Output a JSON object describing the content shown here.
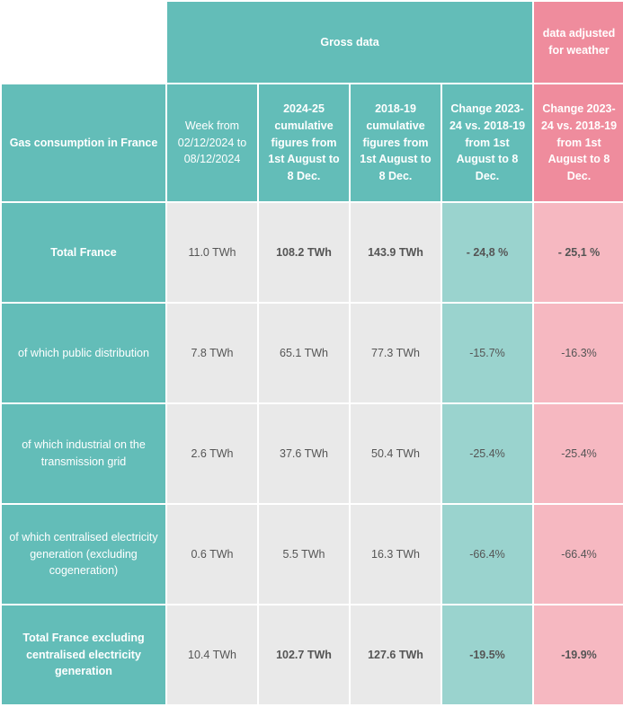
{
  "table": {
    "groupHeaders": {
      "gross": "Gross data",
      "adjusted": "data adjusted for weather"
    },
    "subHeaders": {
      "rowLabel": "Gas consumption in France",
      "week": "Week from 02/12/2024 to 08/12/2024",
      "cum2425": "2024-25 cumulative figures from 1st August to 8 Dec.",
      "cum1819": "2018-19 cumulative figures from 1st August to 8 Dec.",
      "changeGross": "Change 2023-24 vs. 2018-19 from 1st August to 8 Dec.",
      "changeAdj": "Change 2023-24 vs. 2018-19 from 1st August to 8 Dec."
    },
    "rows": [
      {
        "label": "Total France",
        "labelBold": true,
        "week": "11.0 TWh",
        "c2425": "108.2 TWh",
        "c1819": "143.9 TWh",
        "boldMid": true,
        "gross": "- 24,8 %",
        "adj": "- 25,1 %",
        "grossBold": true,
        "adjBold": true
      },
      {
        "label": "of which public distribution",
        "labelBold": false,
        "week": "7.8 TWh",
        "c2425": "65.1 TWh",
        "c1819": "77.3 TWh",
        "boldMid": false,
        "gross": "-15.7%",
        "adj": "-16.3%",
        "grossBold": false,
        "adjBold": false
      },
      {
        "label": "of which industrial on the transmission grid",
        "labelBold": false,
        "week": "2.6 TWh",
        "c2425": "37.6 TWh",
        "c1819": "50.4 TWh",
        "boldMid": false,
        "gross": "-25.4%",
        "adj": "-25.4%",
        "grossBold": false,
        "adjBold": false
      },
      {
        "label": "of which centralised electricity generation (excluding cogeneration)",
        "labelBold": false,
        "week": "0.6 TWh",
        "c2425": "5.5 TWh",
        "c1819": "16.3 TWh",
        "boldMid": false,
        "gross": "-66.4%",
        "adj": "-66.4%",
        "grossBold": false,
        "adjBold": false
      },
      {
        "label": "Total France excluding centralised electricity generation",
        "labelBold": true,
        "week": "10.4 TWh",
        "c2425": "102.7 TWh",
        "c1819": "127.6 TWh",
        "boldMid": true,
        "gross": "-19.5%",
        "adj": "-19.9%",
        "grossBold": true,
        "adjBold": true
      }
    ]
  },
  "colors": {
    "teal": "#63bdb8",
    "tealLight": "#9ad3ce",
    "pink": "#ef8c9d",
    "pinkLight": "#f6b8c1",
    "gray": "#e9e9e9"
  }
}
